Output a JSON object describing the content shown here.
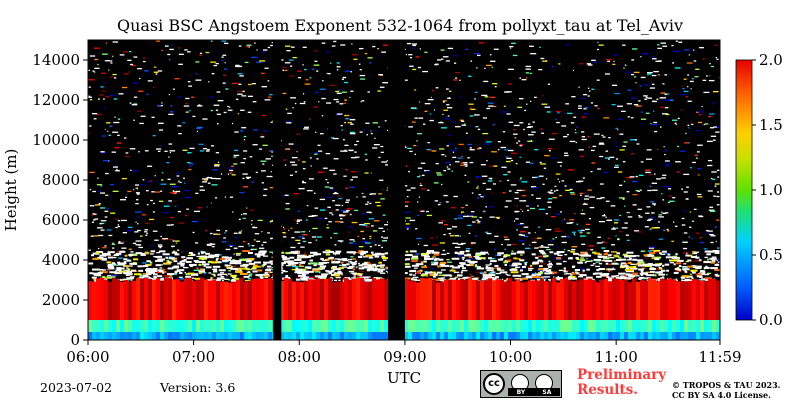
{
  "chart_data": {
    "type": "heatmap",
    "title": "Quasi BSC Angstoem Exponent 532-1064 from pollyxt_tau at Tel_Aviv",
    "xlabel": "UTC",
    "ylabel": "Height (m)",
    "x_range_hours": [
      6.0,
      11.983
    ],
    "x_ticks": [
      "06:00",
      "07:00",
      "08:00",
      "09:00",
      "10:00",
      "11:00",
      "11:59"
    ],
    "x_tick_hours": [
      6.0,
      7.0,
      8.0,
      9.0,
      10.0,
      11.0,
      11.983
    ],
    "ylim": [
      0,
      15000
    ],
    "y_ticks": [
      0,
      2000,
      4000,
      6000,
      8000,
      10000,
      12000,
      14000
    ],
    "colorbar": {
      "range": [
        0.0,
        2.0
      ],
      "ticks": [
        "0.0",
        "0.5",
        "1.0",
        "1.5",
        "2.0"
      ],
      "tick_values": [
        0.0,
        0.5,
        1.0,
        1.5,
        2.0
      ],
      "colormap": "jet"
    },
    "no_data_intervals_hours": [
      [
        7.75,
        7.83
      ],
      [
        8.84,
        9.0
      ]
    ],
    "layers": [
      {
        "base_m": 0,
        "top_m": 400,
        "angstrom": 0.6
      },
      {
        "base_m": 400,
        "top_m": 1000,
        "angstrom": 0.85
      },
      {
        "base_m": 1000,
        "top_m": 3000,
        "angstrom": 1.8
      },
      {
        "base_m": 3000,
        "top_m": 15000,
        "angstrom": "noisy"
      }
    ]
  },
  "footer": {
    "date": "2023-07-02",
    "version": "Version: 3.6",
    "cc_logo": {
      "symbol": "cc",
      "labels": [
        "BY",
        "SA"
      ]
    },
    "preliminary_line1": "Preliminary",
    "preliminary_line2": "Results.",
    "copyright_line1": "© TROPOS & TAU 2023.",
    "copyright_line2": "CC BY SA 4.0 License."
  },
  "colors": {
    "background": "#000000",
    "preliminary": "#ff3b3b"
  }
}
